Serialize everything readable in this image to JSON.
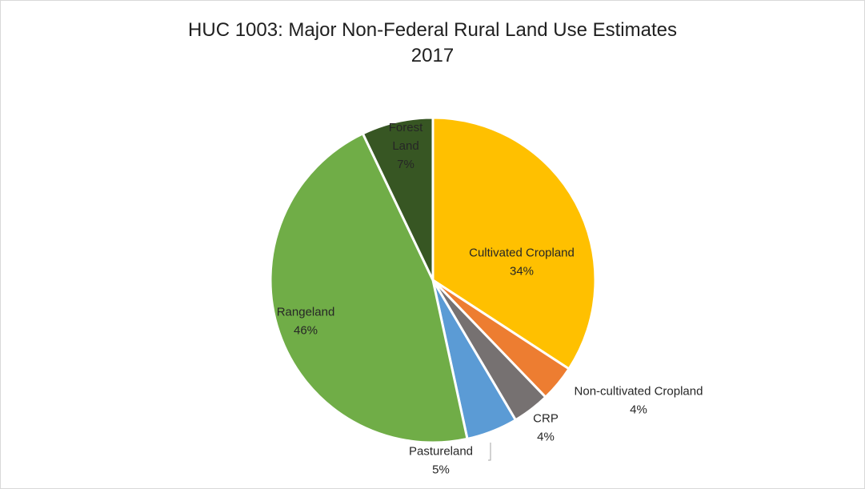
{
  "chart_data": {
    "type": "pie",
    "title": "HUC 1003: Major Non-Federal Rural Land Use Estimates",
    "subtitle": "2017",
    "start_angle_deg": 0,
    "direction": "clockwise",
    "slices": [
      {
        "name": "Cultivated Cropland",
        "label_lines": [
          "Cultivated Cropland"
        ],
        "percent_label": "34%",
        "value": 34.2,
        "color": "#FFC000"
      },
      {
        "name": "Non-cultivated Cropland",
        "label_lines": [
          "Non-cultivated Cropland"
        ],
        "percent_label": "4%",
        "value": 3.6,
        "color": "#ED7D31"
      },
      {
        "name": "CRP",
        "label_lines": [
          "CRP"
        ],
        "percent_label": "4%",
        "value": 3.7,
        "color": "#767171"
      },
      {
        "name": "Pastureland",
        "label_lines": [
          "Pastureland"
        ],
        "percent_label": "5%",
        "value": 5.1,
        "color": "#5B9BD5"
      },
      {
        "name": "Rangeland",
        "label_lines": [
          "Rangeland"
        ],
        "percent_label": "46%",
        "value": 46.3,
        "color": "#70AD47"
      },
      {
        "name": "Forest Land",
        "label_lines": [
          "Forest",
          "Land"
        ],
        "percent_label": "7%",
        "value": 7.1,
        "color": "#375623"
      }
    ]
  }
}
